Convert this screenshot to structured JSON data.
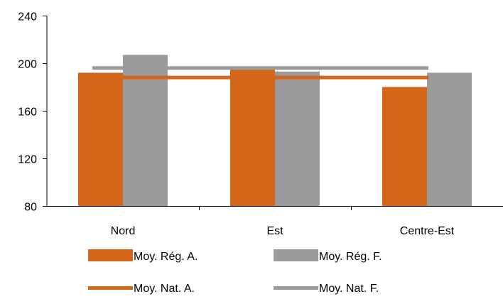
{
  "chart_data": {
    "type": "bar",
    "categories": [
      "Nord",
      "Est",
      "Centre-Est"
    ],
    "series": [
      {
        "name": "Moy. Rég. A.",
        "kind": "bar",
        "color": "#D4661A",
        "values": [
          192,
          195,
          180
        ]
      },
      {
        "name": "Moy. Rég. F.",
        "kind": "bar",
        "color": "#9B9B9B",
        "values": [
          207,
          193,
          192
        ]
      },
      {
        "name": "Moy. Nat. A.",
        "kind": "line",
        "color": "#D4661A",
        "value": 188
      },
      {
        "name": "Moy. Nat. F.",
        "kind": "line",
        "color": "#9B9B9B",
        "value": 196
      }
    ],
    "ylim": [
      80,
      240
    ],
    "yticks": [
      80,
      120,
      160,
      200,
      240
    ],
    "title": "",
    "xlabel": "",
    "ylabel": "",
    "grid": false,
    "legend_position": "bottom"
  }
}
